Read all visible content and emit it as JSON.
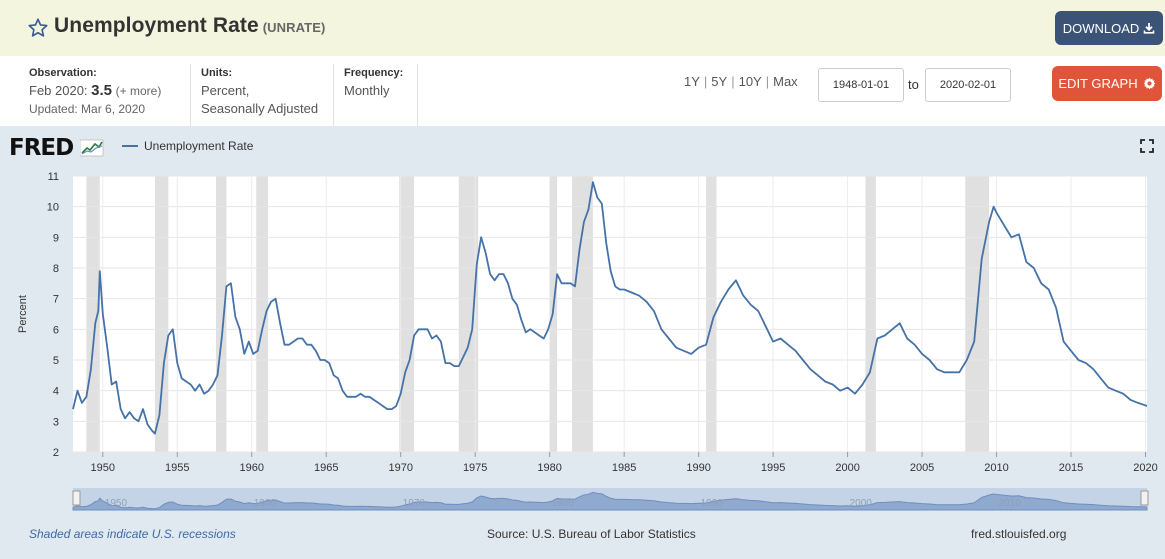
{
  "header": {
    "title": "Unemployment Rate",
    "series_id": "(UNRATE)",
    "download_label": "DOWNLOAD",
    "star_icon": "star-outline-icon",
    "download_icon": "download-icon"
  },
  "meta": {
    "observation_label": "Observation:",
    "observation_period": "Feb 2020:",
    "observation_value": "3.5",
    "observation_more": "(+ more)",
    "updated": "Updated: Mar 6, 2020",
    "units_label": "Units:",
    "units_line1": "Percent,",
    "units_line2": "Seasonally Adjusted",
    "frequency_label": "Frequency:",
    "frequency_value": "Monthly",
    "range_links": [
      "1Y",
      "5Y",
      "10Y",
      "Max"
    ],
    "start_date": "1948-01-01",
    "to_label": "to",
    "end_date": "2020-02-01",
    "edit_label": "EDIT GRAPH",
    "edit_icon": "gear-icon"
  },
  "graph": {
    "logo": "FRED",
    "legend_label": "Unemployment Rate",
    "footer_left": "Shaded areas indicate U.S. recessions",
    "footer_source": "Source: U.S. Bureau of Labor Statistics",
    "footer_right": "fred.stlouisfed.org"
  },
  "colors": {
    "header_bg": "#f4f5de",
    "download_bg": "#3a5377",
    "edit_bg": "#e0543a",
    "panel_bg": "#e1e9f0",
    "line": "#4572a7",
    "recession": "#e0e0e0"
  },
  "chart_data": {
    "type": "line",
    "ylabel": "Percent",
    "ylim": [
      2,
      11
    ],
    "yticks": [
      2,
      3,
      4,
      5,
      6,
      7,
      8,
      9,
      10,
      11
    ],
    "xlim": [
      1948.0,
      2020.1
    ],
    "xticks": [
      1950,
      1955,
      1960,
      1965,
      1970,
      1975,
      1980,
      1985,
      1990,
      1995,
      2000,
      2005,
      2010,
      2015,
      2020
    ],
    "grid": true,
    "legend": "top-left",
    "recessions": [
      [
        1948.9,
        1949.8
      ],
      [
        1953.5,
        1954.4
      ],
      [
        1957.6,
        1958.3
      ],
      [
        1960.3,
        1961.1
      ],
      [
        1969.9,
        1970.9
      ],
      [
        1973.9,
        1975.2
      ],
      [
        1980.0,
        1980.5
      ],
      [
        1981.5,
        1982.9
      ],
      [
        1990.5,
        1991.2
      ],
      [
        2001.2,
        2001.9
      ],
      [
        2007.9,
        2009.5
      ]
    ],
    "series": [
      {
        "name": "Unemployment Rate",
        "x": [
          1948.0,
          1948.3,
          1948.6,
          1948.9,
          1949.2,
          1949.5,
          1949.7,
          1949.8,
          1950.0,
          1950.3,
          1950.6,
          1950.9,
          1951.2,
          1951.5,
          1951.8,
          1952.1,
          1952.4,
          1952.7,
          1953.0,
          1953.3,
          1953.5,
          1953.8,
          1954.1,
          1954.4,
          1954.7,
          1955.0,
          1955.3,
          1955.6,
          1955.9,
          1956.2,
          1956.5,
          1956.8,
          1957.1,
          1957.4,
          1957.7,
          1958.0,
          1958.3,
          1958.6,
          1958.9,
          1959.2,
          1959.5,
          1959.8,
          1960.1,
          1960.4,
          1960.7,
          1961.0,
          1961.3,
          1961.6,
          1961.9,
          1962.2,
          1962.5,
          1962.8,
          1963.1,
          1963.4,
          1963.7,
          1964.0,
          1964.3,
          1964.6,
          1964.9,
          1965.2,
          1965.5,
          1965.8,
          1966.1,
          1966.4,
          1966.7,
          1967.0,
          1967.3,
          1967.6,
          1967.9,
          1968.2,
          1968.5,
          1968.8,
          1969.1,
          1969.4,
          1969.7,
          1970.0,
          1970.3,
          1970.6,
          1970.9,
          1971.2,
          1971.5,
          1971.8,
          1972.1,
          1972.4,
          1972.7,
          1973.0,
          1973.3,
          1973.6,
          1973.9,
          1974.2,
          1974.5,
          1974.8,
          1975.1,
          1975.4,
          1975.7,
          1976.0,
          1976.3,
          1976.6,
          1976.9,
          1977.2,
          1977.5,
          1977.8,
          1978.1,
          1978.4,
          1978.7,
          1979.0,
          1979.3,
          1979.6,
          1979.9,
          1980.2,
          1980.5,
          1980.8,
          1981.1,
          1981.4,
          1981.7,
          1982.0,
          1982.3,
          1982.6,
          1982.9,
          1983.2,
          1983.5,
          1983.8,
          1984.1,
          1984.4,
          1984.7,
          1985.0,
          1985.5,
          1986.0,
          1986.5,
          1987.0,
          1987.5,
          1988.0,
          1988.5,
          1989.0,
          1989.5,
          1990.0,
          1990.5,
          1991.0,
          1991.5,
          1992.0,
          1992.5,
          1993.0,
          1993.5,
          1994.0,
          1994.5,
          1995.0,
          1995.5,
          1996.0,
          1996.5,
          1997.0,
          1997.5,
          1998.0,
          1998.5,
          1999.0,
          1999.5,
          2000.0,
          2000.5,
          2001.0,
          2001.5,
          2002.0,
          2002.5,
          2003.0,
          2003.5,
          2004.0,
          2004.5,
          2005.0,
          2005.5,
          2006.0,
          2006.5,
          2007.0,
          2007.5,
          2008.0,
          2008.5,
          2009.0,
          2009.5,
          2009.8,
          2010.0,
          2010.5,
          2011.0,
          2011.5,
          2012.0,
          2012.5,
          2013.0,
          2013.5,
          2014.0,
          2014.5,
          2015.0,
          2015.5,
          2016.0,
          2016.5,
          2017.0,
          2017.5,
          2018.0,
          2018.5,
          2019.0,
          2019.5,
          2020.1
        ],
        "values": [
          3.4,
          4.0,
          3.6,
          3.8,
          4.7,
          6.2,
          6.6,
          7.9,
          6.5,
          5.4,
          4.2,
          4.3,
          3.4,
          3.1,
          3.3,
          3.1,
          3.0,
          3.4,
          2.9,
          2.7,
          2.6,
          3.2,
          4.9,
          5.8,
          6.0,
          4.9,
          4.4,
          4.3,
          4.2,
          4.0,
          4.2,
          3.9,
          4.0,
          4.2,
          4.5,
          5.8,
          7.4,
          7.5,
          6.4,
          6.0,
          5.2,
          5.6,
          5.2,
          5.3,
          6.0,
          6.6,
          6.9,
          7.0,
          6.2,
          5.5,
          5.5,
          5.6,
          5.7,
          5.7,
          5.5,
          5.5,
          5.3,
          5.0,
          5.0,
          4.9,
          4.5,
          4.4,
          4.0,
          3.8,
          3.8,
          3.8,
          3.9,
          3.8,
          3.8,
          3.7,
          3.6,
          3.5,
          3.4,
          3.4,
          3.5,
          3.9,
          4.6,
          5.0,
          5.8,
          6.0,
          6.0,
          6.0,
          5.7,
          5.8,
          5.6,
          4.9,
          4.9,
          4.8,
          4.8,
          5.1,
          5.4,
          6.0,
          8.1,
          9.0,
          8.5,
          7.8,
          7.6,
          7.8,
          7.8,
          7.5,
          7.0,
          6.8,
          6.3,
          5.9,
          6.0,
          5.9,
          5.8,
          5.7,
          6.0,
          6.5,
          7.8,
          7.5,
          7.5,
          7.5,
          7.4,
          8.6,
          9.5,
          9.9,
          10.8,
          10.3,
          10.1,
          8.8,
          7.9,
          7.4,
          7.3,
          7.3,
          7.2,
          7.1,
          6.9,
          6.6,
          6.0,
          5.7,
          5.4,
          5.3,
          5.2,
          5.4,
          5.5,
          6.4,
          6.9,
          7.3,
          7.6,
          7.1,
          6.8,
          6.6,
          6.1,
          5.6,
          5.7,
          5.5,
          5.3,
          5.0,
          4.7,
          4.5,
          4.3,
          4.2,
          4.0,
          4.1,
          3.9,
          4.2,
          4.6,
          5.7,
          5.8,
          6.0,
          6.2,
          5.7,
          5.5,
          5.2,
          5.0,
          4.7,
          4.6,
          4.6,
          4.6,
          5.0,
          5.6,
          8.3,
          9.5,
          10.0,
          9.8,
          9.4,
          9.0,
          9.1,
          8.2,
          8.0,
          7.5,
          7.3,
          6.7,
          5.6,
          5.3,
          5.0,
          4.9,
          4.7,
          4.4,
          4.1,
          4.0,
          3.9,
          3.7,
          3.6,
          3.5
        ]
      }
    ],
    "overview_ticks": [
      1950,
      1960,
      1970,
      1980,
      1990,
      2000,
      2010
    ]
  }
}
